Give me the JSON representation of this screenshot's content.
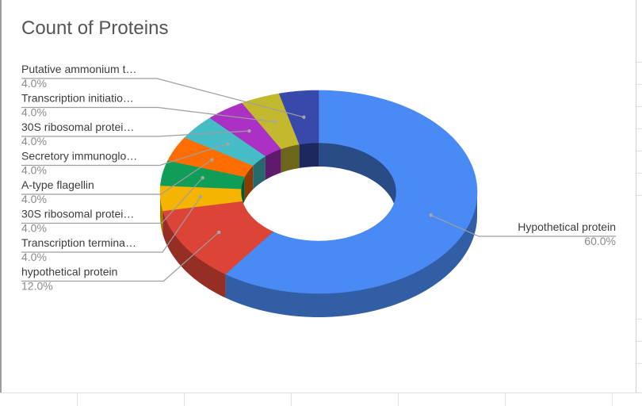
{
  "chart_data": {
    "type": "pie",
    "title": "Count of Proteins",
    "donut": true,
    "three_d": true,
    "slices": [
      {
        "label": "Hypothetical protein",
        "percent_label": "60.0%",
        "value": 60.0,
        "color": "#4a8af4"
      },
      {
        "label": "hypothetical protein",
        "percent_label": "12.0%",
        "value": 12.0,
        "color": "#db4437"
      },
      {
        "label": "Transcription termina…",
        "percent_label": "4.0%",
        "value": 4.0,
        "color": "#f4b400"
      },
      {
        "label": "30S ribosomal protei…",
        "percent_label": "4.0%",
        "value": 4.0,
        "color": "#0f9d58"
      },
      {
        "label": "A-type flagellin",
        "percent_label": "4.0%",
        "value": 4.0,
        "color": "#ff6d00"
      },
      {
        "label": "Secretory immunoglo…",
        "percent_label": "4.0%",
        "value": 4.0,
        "color": "#46bdc6"
      },
      {
        "label": "30S ribosomal protei…",
        "percent_label": "4.0%",
        "value": 4.0,
        "color": "#ab30c4"
      },
      {
        "label": "Transcription initiatio…",
        "percent_label": "4.0%",
        "value": 4.0,
        "color": "#c2b92e"
      },
      {
        "label": "Putative ammonium t…",
        "percent_label": "4.0%",
        "value": 4.0,
        "color": "#3949ab"
      }
    ]
  }
}
